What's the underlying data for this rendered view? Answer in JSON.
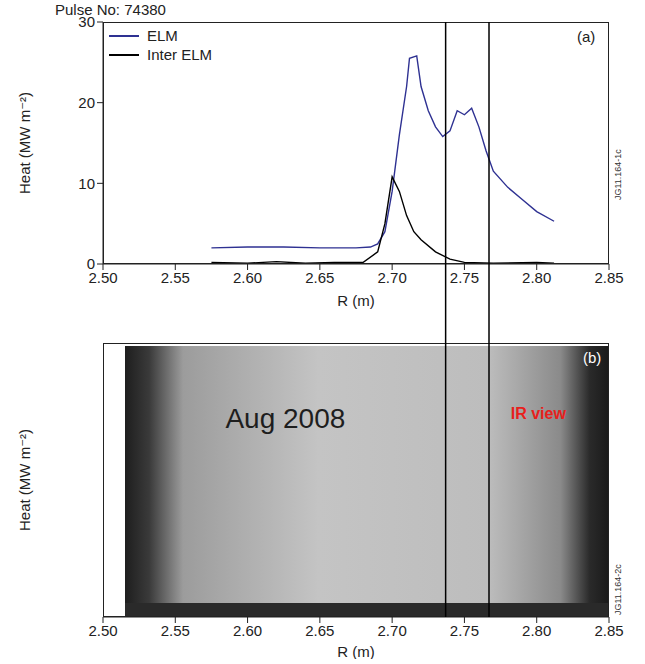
{
  "chart_data": [
    {
      "type": "line",
      "title": "Pulse No: 74380",
      "panel": "(a)",
      "x_label": "R (m)",
      "y_label": "Heat (MW m⁻²)",
      "xlim": [
        2.5,
        2.85
      ],
      "xticks": [
        {
          "value": 2.5,
          "label": "2.50"
        },
        {
          "value": 2.55,
          "label": "2.55"
        },
        {
          "value": 2.6,
          "label": "2.60"
        },
        {
          "value": 2.65,
          "label": "2.65"
        },
        {
          "value": 2.7,
          "label": "2.70"
        },
        {
          "value": 2.75,
          "label": "2.75"
        },
        {
          "value": 2.8,
          "label": "2.80"
        },
        {
          "value": 2.85,
          "label": "2.85"
        }
      ],
      "ylim": [
        0,
        30
      ],
      "yticks": [
        0,
        10,
        20,
        30
      ],
      "legend": "upper left",
      "series": [
        {
          "name": "ELM",
          "color": "#2e3192",
          "x": [
            2.575,
            2.6,
            2.625,
            2.65,
            2.675,
            2.685,
            2.69,
            2.695,
            2.7,
            2.705,
            2.71,
            2.712,
            2.717,
            2.72,
            2.725,
            2.73,
            2.735,
            2.74,
            2.745,
            2.75,
            2.755,
            2.76,
            2.765,
            2.77,
            2.78,
            2.79,
            2.8,
            2.812
          ],
          "values": [
            2.0,
            2.1,
            2.1,
            2.0,
            2.0,
            2.1,
            2.5,
            4,
            9,
            16,
            22,
            25.5,
            25.8,
            22,
            19,
            17,
            15.8,
            16.5,
            19,
            18.5,
            19.3,
            17,
            14,
            11.5,
            9.5,
            8,
            6.5,
            5.3
          ]
        },
        {
          "name": "Inter ELM",
          "color": "#000000",
          "x": [
            2.575,
            2.6,
            2.62,
            2.64,
            2.66,
            2.68,
            2.69,
            2.695,
            2.7,
            2.705,
            2.71,
            2.715,
            2.72,
            2.73,
            2.74,
            2.75,
            2.77,
            2.8,
            2.812
          ],
          "values": [
            0.2,
            0.1,
            0.3,
            0.1,
            0.2,
            0.2,
            1.5,
            5,
            10.8,
            9,
            6,
            4,
            3,
            1.5,
            0.6,
            0.2,
            0.1,
            0.2,
            0.1
          ]
        }
      ],
      "annotations": [
        "JG11.164-1c"
      ],
      "reference_lines": [
        2.737,
        2.767
      ]
    },
    {
      "type": "image",
      "panel": "(b)",
      "x_label": "R (m)",
      "y_label": "Heat (MW m⁻²)",
      "xlim": [
        2.5,
        2.85
      ],
      "xticks": [
        {
          "value": 2.5,
          "label": "2.50"
        },
        {
          "value": 2.55,
          "label": "2.55"
        },
        {
          "value": 2.6,
          "label": "2.60"
        },
        {
          "value": 2.65,
          "label": "2.65"
        },
        {
          "value": 2.7,
          "label": "2.70"
        },
        {
          "value": 2.75,
          "label": "2.75"
        },
        {
          "value": 2.8,
          "label": "2.80"
        },
        {
          "value": 2.85,
          "label": "2.85"
        }
      ],
      "tick_labels": "x",
      "annotations": [
        "Aug 2008",
        "JG11.164-2c"
      ],
      "ir_view": {
        "label": "IR view",
        "color": "#e8201c",
        "xlim": [
          2.575,
          2.818
        ]
      },
      "reference_lines": [
        2.737,
        2.767
      ]
    }
  ]
}
